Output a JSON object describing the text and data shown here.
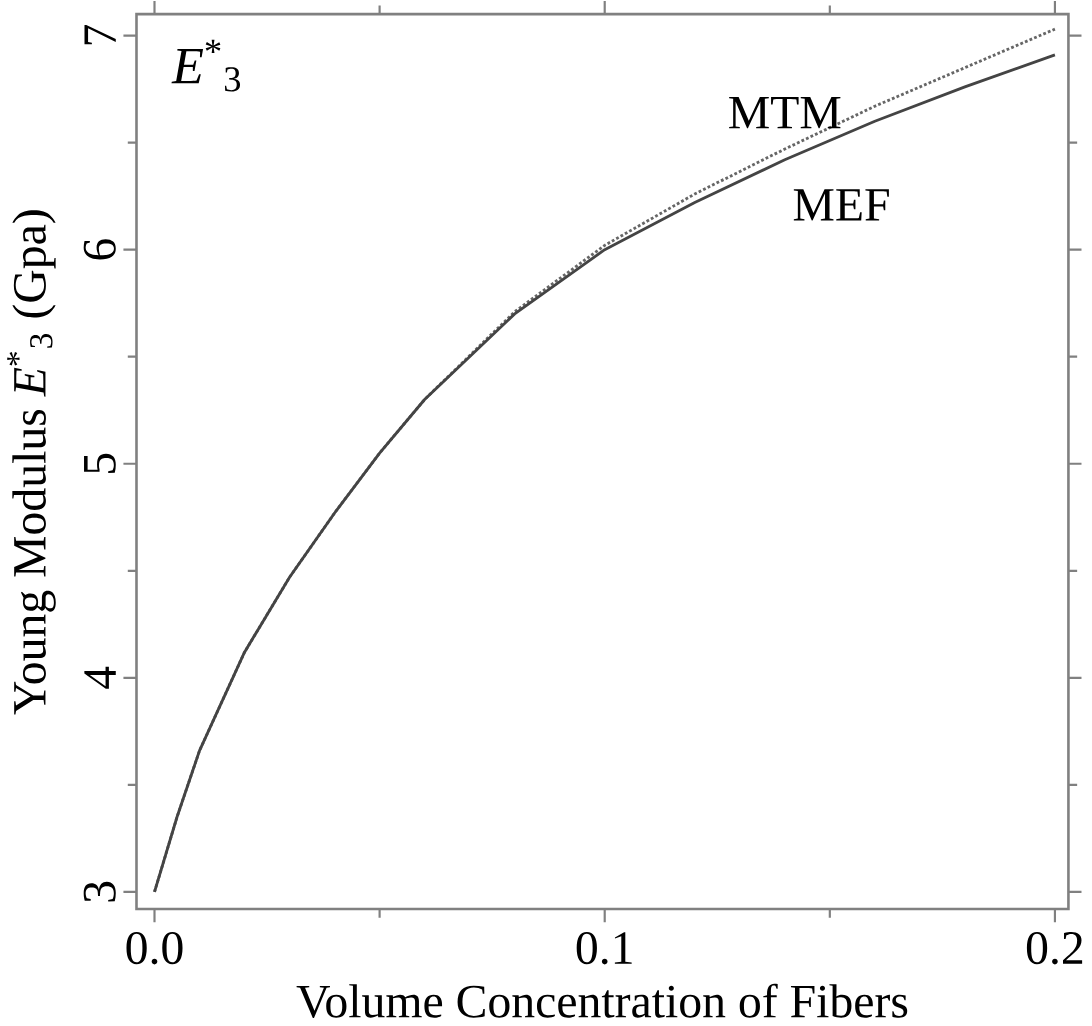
{
  "chart_data": {
    "type": "line",
    "xlabel": "Volume Concentration of Fibers",
    "ylabel": "Young Modulus *E*$^{*}$$_{3}$ (Gpa)",
    "annotations": [
      "*E*$^{*}$$_{3}$"
    ],
    "x": [
      0,
      0.005,
      0.01,
      0.02,
      0.03,
      0.04,
      0.05,
      0.06,
      0.08,
      0.1,
      0.12,
      0.14,
      0.16,
      0.18,
      0.2
    ],
    "series": [
      {
        "name": "MTM",
        "color": "#666666",
        "line_style": "dotted",
        "values": [
          3.0,
          3.35,
          3.66,
          4.12,
          4.47,
          4.77,
          5.05,
          5.3,
          5.71,
          6.02,
          6.26,
          6.47,
          6.67,
          6.85,
          7.03
        ]
      },
      {
        "name": "MEF",
        "color": "#444444",
        "line_style": "solid",
        "values": [
          3.0,
          3.35,
          3.66,
          4.12,
          4.47,
          4.77,
          5.05,
          5.3,
          5.7,
          6.0,
          6.22,
          6.42,
          6.6,
          6.76,
          6.91
        ]
      }
    ],
    "xlim": [
      -0.004,
      0.203
    ],
    "ylim": [
      2.92,
      7.1
    ],
    "xticks": [
      {
        "value": 0,
        "label": "0.0"
      },
      0.1,
      0.2
    ],
    "yticks": [
      3,
      4,
      5,
      6,
      7
    ],
    "grid": false
  }
}
